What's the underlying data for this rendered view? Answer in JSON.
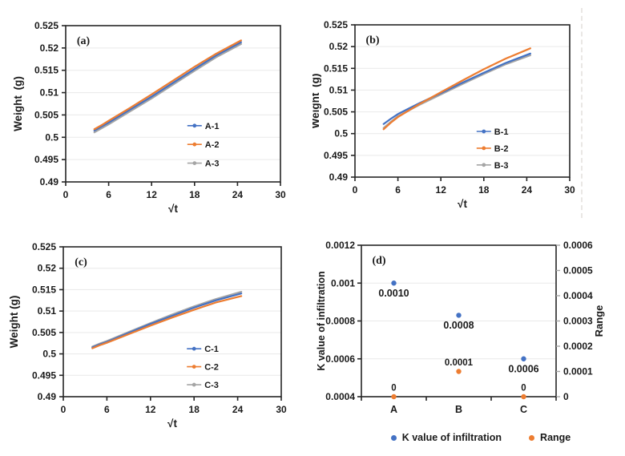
{
  "colors": {
    "blue": "#4472c4",
    "orange": "#ed7d31",
    "gray": "#a5a5a5",
    "green": "#6a9c43",
    "black": "#1a1a1a",
    "axis": "#262626",
    "grid": "#e9e9e9"
  },
  "chart_data": [
    {
      "id": "a",
      "type": "line",
      "panel_label": "(a)",
      "xlabel": "√t",
      "ylabel": "Weight (g)",
      "xlim": [
        0,
        30
      ],
      "xticks": [
        0,
        6,
        12,
        18,
        24,
        30
      ],
      "xtick_labels": [
        "0",
        "6",
        "12",
        "18",
        "24",
        "30"
      ],
      "ylim": [
        0.49,
        0.525
      ],
      "yticks": [
        0.49,
        0.495,
        0.5,
        0.505,
        0.51,
        0.515,
        0.52,
        0.525
      ],
      "ytick_labels": [
        "0.49",
        "0.495",
        "0.5",
        "0.505",
        "0.51",
        "0.515",
        "0.52",
        "0.525"
      ],
      "grid": "horizontal",
      "legend_position": "inside-right",
      "x": [
        4,
        5,
        6,
        9,
        12,
        15,
        18,
        21,
        24.5
      ],
      "series": [
        {
          "name": "A-1",
          "color_key": "blue",
          "y": [
            0.5015,
            0.5024,
            0.5033,
            0.5062,
            0.5091,
            0.5122,
            0.5153,
            0.5183,
            0.5213
          ]
        },
        {
          "name": "A-2",
          "color_key": "orange",
          "y": [
            0.5018,
            0.5027,
            0.5037,
            0.5066,
            0.5096,
            0.5127,
            0.5158,
            0.5187,
            0.5217
          ]
        },
        {
          "name": "A-3",
          "color_key": "gray",
          "y": [
            0.5011,
            0.502,
            0.5029,
            0.5058,
            0.5087,
            0.5118,
            0.5149,
            0.5179,
            0.5209
          ]
        }
      ]
    },
    {
      "id": "b",
      "type": "line",
      "panel_label": "(b)",
      "xlabel": "√t",
      "ylabel": "Weight (g)",
      "xlim": [
        0,
        30
      ],
      "xticks": [
        0,
        6,
        12,
        18,
        24,
        30
      ],
      "xtick_labels": [
        "0",
        "6",
        "12",
        "18",
        "24",
        "30"
      ],
      "ylim": [
        0.49,
        0.525
      ],
      "yticks": [
        0.49,
        0.495,
        0.5,
        0.505,
        0.51,
        0.515,
        0.52,
        0.525
      ],
      "ytick_labels": [
        "0.49",
        "0.495",
        "0.5",
        "0.505",
        "0.51",
        "0.515",
        "0.52",
        "0.525"
      ],
      "grid": "horizontal",
      "legend_position": "inside-right",
      "x": [
        4,
        5,
        6,
        9,
        12,
        15,
        18,
        21,
        24.5
      ],
      "series": [
        {
          "name": "B-1",
          "color_key": "blue",
          "y": [
            0.5022,
            0.5034,
            0.5045,
            0.507,
            0.5093,
            0.5117,
            0.514,
            0.5162,
            0.5184
          ]
        },
        {
          "name": "B-2",
          "color_key": "orange",
          "y": [
            0.501,
            0.5025,
            0.5038,
            0.5068,
            0.5095,
            0.5122,
            0.5148,
            0.5172,
            0.5196
          ]
        },
        {
          "name": "B-3",
          "color_key": "gray",
          "y": [
            0.5013,
            0.5027,
            0.504,
            0.5066,
            0.509,
            0.5114,
            0.5137,
            0.5159,
            0.518
          ]
        }
      ]
    },
    {
      "id": "c",
      "type": "line",
      "panel_label": "(c)",
      "xlabel": "√t",
      "ylabel": "Weight (g)",
      "xlim": [
        0,
        30
      ],
      "xticks": [
        0,
        6,
        12,
        18,
        24,
        30
      ],
      "xtick_labels": [
        "0",
        "6",
        "12",
        "18",
        "24",
        "30"
      ],
      "ylim": [
        0.49,
        0.525
      ],
      "yticks": [
        0.49,
        0.495,
        0.5,
        0.505,
        0.51,
        0.515,
        0.52,
        0.525
      ],
      "ytick_labels": [
        "0.49",
        "0.495",
        "0.5",
        "0.505",
        "0.51",
        "0.515",
        "0.52",
        "0.525"
      ],
      "grid": "horizontal",
      "legend_position": "inside-right",
      "x": [
        4,
        5,
        6,
        9,
        12,
        15,
        18,
        21,
        24.5
      ],
      "series": [
        {
          "name": "C-1",
          "color_key": "blue",
          "y": [
            0.5015,
            0.5022,
            0.5028,
            0.5049,
            0.507,
            0.5089,
            0.5108,
            0.5125,
            0.5141
          ]
        },
        {
          "name": "C-2",
          "color_key": "orange",
          "y": [
            0.5013,
            0.502,
            0.5026,
            0.5046,
            0.5066,
            0.5085,
            0.5103,
            0.512,
            0.5135
          ]
        },
        {
          "name": "C-3",
          "color_key": "gray",
          "y": [
            0.5017,
            0.5024,
            0.503,
            0.5051,
            0.5072,
            0.5092,
            0.5111,
            0.5128,
            0.5145
          ]
        }
      ]
    },
    {
      "id": "d",
      "type": "scatter",
      "panel_label": "(d)",
      "categories": [
        "A",
        "B",
        "C"
      ],
      "grid": "horizontal",
      "left_axis": {
        "label": "K value of infiltration",
        "lim": [
          0.0004,
          0.0012
        ],
        "ticks": [
          0.0004,
          0.0006,
          0.0008,
          0.001,
          0.0012
        ],
        "tick_labels": [
          "0.0004",
          "0.0006",
          "0.0008",
          "0.001",
          "0.0012"
        ]
      },
      "right_axis": {
        "label": "Range",
        "color_key": "green",
        "lim": [
          0,
          0.0006
        ],
        "ticks": [
          0,
          0.0001,
          0.0002,
          0.0003,
          0.0004,
          0.0005,
          0.0006
        ],
        "tick_labels": [
          "0",
          "0.0001",
          "0.0002",
          "0.0003",
          "0.0004",
          "0.0005",
          "0.0006"
        ]
      },
      "series": [
        {
          "name": "K value of infiltration",
          "axis": "left",
          "color_key": "blue",
          "values": [
            0.001,
            0.00083,
            0.0006
          ],
          "point_labels": [
            "0.0010",
            "0.0008",
            "0.0006"
          ],
          "label_color_key": "black",
          "label_side": "below"
        },
        {
          "name": "Range",
          "axis": "right",
          "color_key": "orange",
          "values": [
            0,
            0.0001,
            0
          ],
          "point_labels": [
            "0",
            "0.0001",
            "0"
          ],
          "label_color_key": "green",
          "label_side": "above"
        }
      ],
      "legend": [
        {
          "label": "K value of infiltration",
          "color_key": "blue"
        },
        {
          "label": "Range",
          "color_key": "orange"
        }
      ],
      "legend_position": "bottom"
    }
  ]
}
